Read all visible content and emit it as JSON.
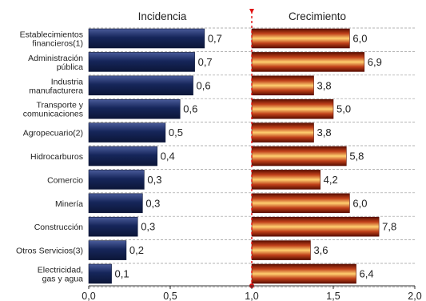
{
  "chart_data": {
    "type": "bar",
    "categories": [
      [
        "Establecimientos",
        "financieros(1)"
      ],
      [
        "Administración",
        "pública"
      ],
      [
        "Industria",
        "manufacturera"
      ],
      [
        "Transporte y",
        "comunicaciones"
      ],
      [
        "Agropecuario(2)"
      ],
      [
        "Hidrocarburos"
      ],
      [
        "Comercio"
      ],
      [
        "Minería"
      ],
      [
        "Construcción"
      ],
      [
        "Otros Servicios(3)"
      ],
      [
        "Electricidad,",
        "gas y agua"
      ]
    ],
    "panels": [
      {
        "title": "Incidencia",
        "values": [
          0.7,
          0.7,
          0.6,
          0.6,
          0.5,
          0.4,
          0.3,
          0.3,
          0.3,
          0.2,
          0.1
        ],
        "labels": [
          "0,7",
          "0,7",
          "0,6",
          "0,6",
          "0,5",
          "0,4",
          "0,3",
          "0,3",
          "0,3",
          "0,2",
          "0,1"
        ],
        "bar_value": [
          0.71,
          0.65,
          0.64,
          0.56,
          0.47,
          0.42,
          0.34,
          0.33,
          0.3,
          0.23,
          0.14
        ],
        "color": "#1a2a5e",
        "x_start": 0.0
      },
      {
        "title": "Crecimiento",
        "values": [
          6.0,
          6.9,
          3.8,
          5.0,
          3.8,
          5.8,
          4.2,
          6.0,
          7.8,
          3.6,
          6.4
        ],
        "labels": [
          "6,0",
          "6,9",
          "3,8",
          "5,0",
          "3,8",
          "5,8",
          "4,2",
          "6,0",
          "7,8",
          "3,6",
          "6,4"
        ],
        "color": "#c8561a",
        "x_start": 1.0,
        "scale": 0.1
      }
    ],
    "xlim": [
      0.0,
      2.0
    ],
    "xticks": [
      0.0,
      0.5,
      1.0,
      1.5,
      2.0
    ],
    "xtick_labels": [
      "0,0",
      "0,5",
      "1,0",
      "1,5",
      "2,0"
    ],
    "divider_x": 1.0,
    "divider_color": "#e01010",
    "grid": "horizontal dashed"
  }
}
